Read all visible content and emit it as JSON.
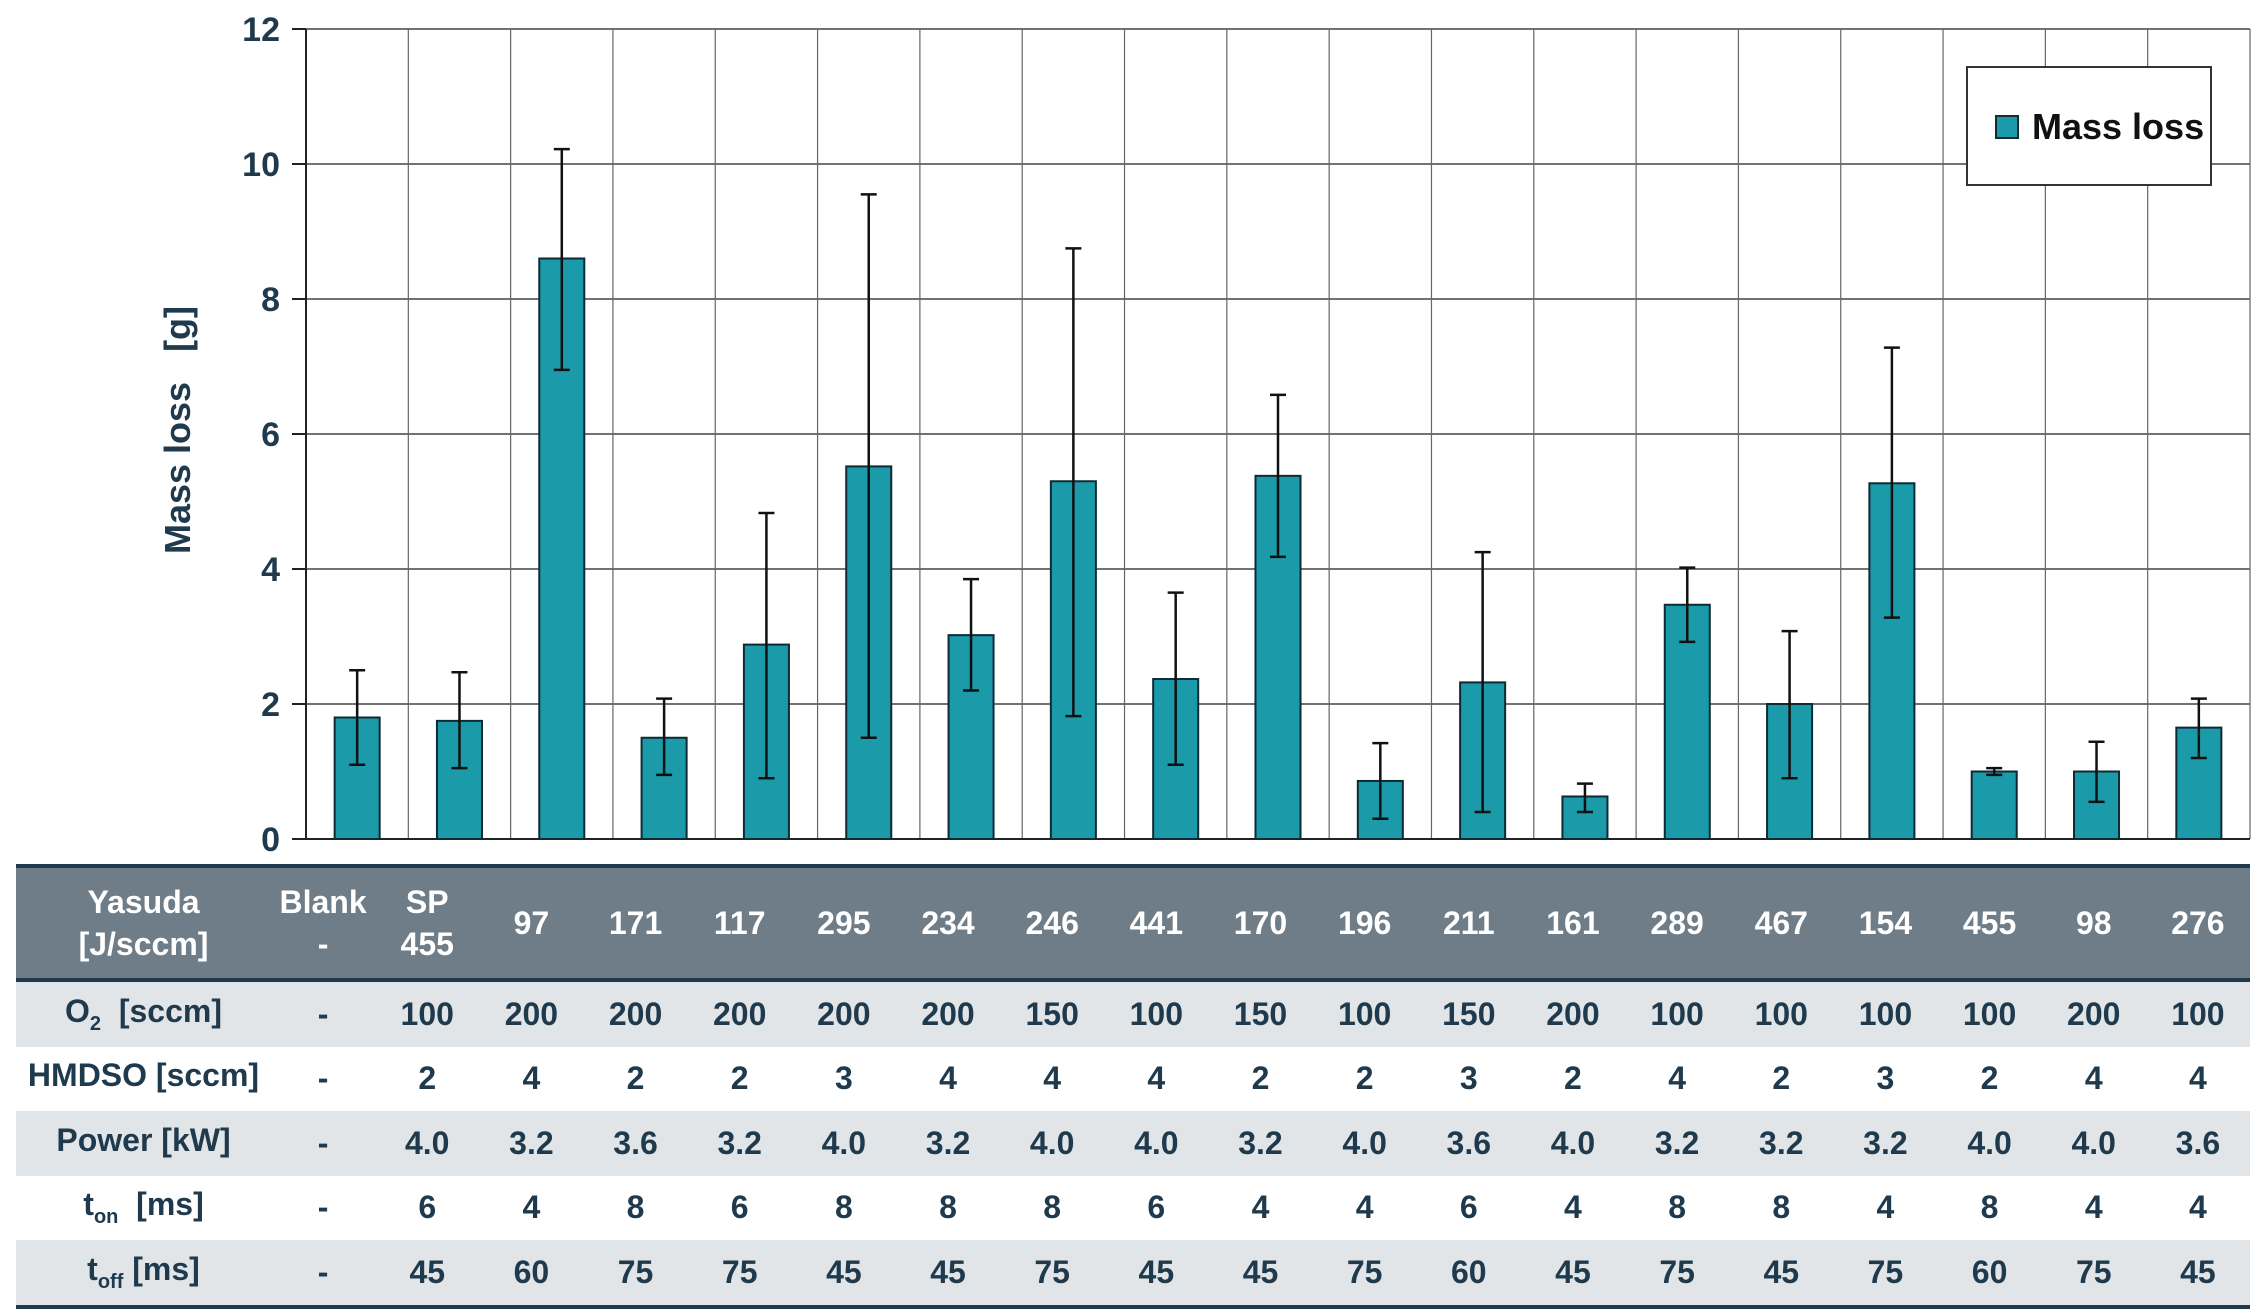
{
  "chart_data": {
    "type": "bar",
    "title": "",
    "ylabel": "Mass loss   [g]",
    "ylim": [
      0,
      12
    ],
    "yticks": [
      0,
      2,
      4,
      6,
      8,
      10,
      12
    ],
    "grid": true,
    "legend_position": "top-right",
    "series": [
      {
        "name": "Mass loss",
        "color": "#1b9aaa",
        "values": [
          1.8,
          1.75,
          8.6,
          1.5,
          2.88,
          5.52,
          3.02,
          5.3,
          2.37,
          5.38,
          0.86,
          2.32,
          0.63,
          3.47,
          2.0,
          5.27,
          1.0,
          1.0,
          1.65
        ],
        "err_low": [
          1.1,
          1.05,
          6.95,
          0.95,
          0.9,
          1.5,
          2.2,
          1.82,
          1.1,
          4.18,
          0.3,
          0.4,
          0.4,
          2.92,
          0.9,
          3.28,
          0.95,
          0.55,
          1.2
        ],
        "err_high": [
          2.5,
          2.47,
          10.22,
          2.08,
          4.83,
          9.55,
          3.85,
          8.75,
          3.65,
          6.58,
          1.42,
          4.25,
          0.82,
          4.02,
          3.08,
          7.28,
          1.05,
          1.44,
          2.08
        ]
      }
    ],
    "table": {
      "header": {
        "label_line1": "Yasuda",
        "label_line2": "[J/sccm]",
        "values": [
          [
            "Blank",
            "-"
          ],
          [
            "SP",
            "455"
          ],
          [
            "97"
          ],
          [
            "171"
          ],
          [
            "117"
          ],
          [
            "295"
          ],
          [
            "234"
          ],
          [
            "246"
          ],
          [
            "441"
          ],
          [
            "170"
          ],
          [
            "196"
          ],
          [
            "211"
          ],
          [
            "161"
          ],
          [
            "289"
          ],
          [
            "467"
          ],
          [
            "154"
          ],
          [
            "455"
          ],
          [
            "98"
          ],
          [
            "276"
          ]
        ]
      },
      "rows": [
        {
          "label_main": "O",
          "label_sub": "2",
          "label_rest": "  [sccm]",
          "values": [
            "-",
            "100",
            "200",
            "200",
            "200",
            "200",
            "200",
            "150",
            "100",
            "150",
            "100",
            "150",
            "200",
            "100",
            "100",
            "100",
            "100",
            "200",
            "100"
          ]
        },
        {
          "label_main": "HMDSO [sccm]",
          "label_sub": "",
          "label_rest": "",
          "values": [
            "-",
            "2",
            "4",
            "2",
            "2",
            "3",
            "4",
            "4",
            "4",
            "2",
            "2",
            "3",
            "2",
            "4",
            "2",
            "3",
            "2",
            "4",
            "4"
          ]
        },
        {
          "label_main": "Power [kW]",
          "label_sub": "",
          "label_rest": "",
          "values": [
            "-",
            "4.0",
            "3.2",
            "3.6",
            "3.2",
            "4.0",
            "3.2",
            "4.0",
            "4.0",
            "3.2",
            "4.0",
            "3.6",
            "4.0",
            "3.2",
            "3.2",
            "3.2",
            "4.0",
            "4.0",
            "3.6"
          ]
        },
        {
          "label_main": "t",
          "label_sub": "on",
          "label_rest": "  [ms]",
          "values": [
            "-",
            "6",
            "4",
            "8",
            "6",
            "8",
            "8",
            "8",
            "6",
            "4",
            "4",
            "6",
            "4",
            "8",
            "8",
            "4",
            "8",
            "4",
            "4"
          ]
        },
        {
          "label_main": "t",
          "label_sub": "off",
          "label_rest": " [ms]",
          "values": [
            "-",
            "45",
            "60",
            "75",
            "75",
            "45",
            "45",
            "75",
            "45",
            "45",
            "75",
            "60",
            "45",
            "75",
            "45",
            "75",
            "60",
            "75",
            "45"
          ]
        }
      ]
    }
  }
}
